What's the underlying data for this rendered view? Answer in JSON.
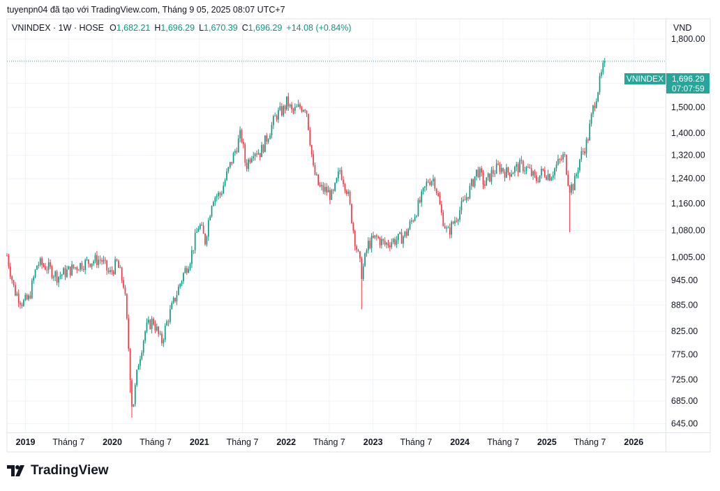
{
  "header": {
    "text": "tuyenpn04 đã tạo với TradingView.com, Tháng 9 05, 2025 08:07 UTC+7"
  },
  "legend": {
    "symbol": "VNINDEX · 1W · HOSE",
    "o_label": "O",
    "o_value": "1,682.21",
    "h_label": "H",
    "h_value": "1,696.29",
    "l_label": "L",
    "l_value": "1,670.39",
    "c_label": "C",
    "c_value": "1,696.29",
    "change": "+14.08 (+0.84%)"
  },
  "price_scale": {
    "currency": "VND"
  },
  "last_price": {
    "symbol_label": "VNINDEX",
    "price": "1,696.29",
    "countdown": "07:07:59"
  },
  "footer": {
    "brand": "TradingView"
  },
  "colors": {
    "up": "#089981",
    "down": "#f23645",
    "grid": "#f0f3fa",
    "badge": "#26a69a"
  },
  "chart_data": {
    "type": "candlestick",
    "scale": "log",
    "ylim": [
      630,
      1900
    ],
    "y_ticks": [
      645,
      685,
      725,
      775,
      825,
      885,
      945,
      1005,
      1080,
      1160,
      1240,
      1320,
      1400,
      1500,
      1600,
      1800
    ],
    "y_tick_labels": [
      "645.00",
      "685.00",
      "725.00",
      "775.00",
      "825.00",
      "885.00",
      "945.00",
      "1,005.00",
      "1,080.00",
      "1,160.00",
      "1,240.00",
      "1,320.00",
      "1,400.00",
      "1,500.00",
      "1,600.00",
      "1,800.00"
    ],
    "x_range": [
      "2018-10-15",
      "2026-05-15"
    ],
    "x_ticks": [
      {
        "label": "2019",
        "date": "2019-01-01"
      },
      {
        "label": "Tháng 7",
        "date": "2019-07-01"
      },
      {
        "label": "2020",
        "date": "2020-01-01"
      },
      {
        "label": "Tháng 7",
        "date": "2020-07-01"
      },
      {
        "label": "2021",
        "date": "2021-01-01"
      },
      {
        "label": "Tháng 7",
        "date": "2021-07-01"
      },
      {
        "label": "2022",
        "date": "2022-01-01"
      },
      {
        "label": "Tháng 7",
        "date": "2022-07-01"
      },
      {
        "label": "2023",
        "date": "2023-01-01"
      },
      {
        "label": "Tháng 7",
        "date": "2023-07-01"
      },
      {
        "label": "2024",
        "date": "2024-01-01"
      },
      {
        "label": "Tháng 7",
        "date": "2024-07-01"
      },
      {
        "label": "2025",
        "date": "2025-01-01"
      },
      {
        "label": "Tháng 7",
        "date": "2025-07-01"
      },
      {
        "label": "2026",
        "date": "2026-01-01"
      }
    ],
    "last_price_value": 1696.29,
    "last_date": "2025-09-01",
    "anchors": [
      [
        "2018-10-15",
        1010
      ],
      [
        "2018-11-15",
        920
      ],
      [
        "2018-12-20",
        890
      ],
      [
        "2019-01-15",
        900
      ],
      [
        "2019-02-20",
        990
      ],
      [
        "2019-04-01",
        980
      ],
      [
        "2019-05-15",
        955
      ],
      [
        "2019-07-01",
        970
      ],
      [
        "2019-08-15",
        985
      ],
      [
        "2019-10-01",
        995
      ],
      [
        "2019-11-15",
        1000
      ],
      [
        "2019-12-20",
        960
      ],
      [
        "2020-01-20",
        990
      ],
      [
        "2020-02-20",
        930
      ],
      [
        "2020-03-25",
        665
      ],
      [
        "2020-04-20",
        760
      ],
      [
        "2020-05-20",
        830
      ],
      [
        "2020-06-20",
        850
      ],
      [
        "2020-07-25",
        800
      ],
      [
        "2020-08-20",
        850
      ],
      [
        "2020-09-20",
        900
      ],
      [
        "2020-10-25",
        960
      ],
      [
        "2020-11-25",
        1005
      ],
      [
        "2020-12-31",
        1100
      ],
      [
        "2021-01-25",
        1050
      ],
      [
        "2021-02-25",
        1180
      ],
      [
        "2021-03-31",
        1190
      ],
      [
        "2021-04-25",
        1250
      ],
      [
        "2021-05-25",
        1320
      ],
      [
        "2021-06-25",
        1400
      ],
      [
        "2021-07-15",
        1280
      ],
      [
        "2021-08-15",
        1340
      ],
      [
        "2021-09-15",
        1330
      ],
      [
        "2021-10-15",
        1390
      ],
      [
        "2021-11-20",
        1470
      ],
      [
        "2021-12-20",
        1490
      ],
      [
        "2022-01-05",
        1525
      ],
      [
        "2022-01-25",
        1480
      ],
      [
        "2022-02-25",
        1500
      ],
      [
        "2022-03-25",
        1505
      ],
      [
        "2022-04-25",
        1270
      ],
      [
        "2022-05-20",
        1210
      ],
      [
        "2022-06-20",
        1200
      ],
      [
        "2022-07-15",
        1180
      ],
      [
        "2022-08-15",
        1270
      ],
      [
        "2022-09-15",
        1200
      ],
      [
        "2022-10-15",
        1060
      ],
      [
        "2022-11-15",
        960
      ],
      [
        "2022-12-10",
        1040
      ],
      [
        "2023-01-15",
        1060
      ],
      [
        "2023-02-20",
        1040
      ],
      [
        "2023-03-20",
        1050
      ],
      [
        "2023-04-20",
        1055
      ],
      [
        "2023-05-20",
        1070
      ],
      [
        "2023-06-20",
        1120
      ],
      [
        "2023-07-20",
        1170
      ],
      [
        "2023-08-20",
        1235
      ],
      [
        "2023-09-15",
        1240
      ],
      [
        "2023-10-15",
        1130
      ],
      [
        "2023-11-10",
        1070
      ],
      [
        "2023-12-10",
        1110
      ],
      [
        "2024-01-15",
        1160
      ],
      [
        "2024-02-15",
        1210
      ],
      [
        "2024-03-15",
        1270
      ],
      [
        "2024-04-15",
        1220
      ],
      [
        "2024-05-15",
        1260
      ],
      [
        "2024-06-15",
        1280
      ],
      [
        "2024-07-15",
        1260
      ],
      [
        "2024-08-15",
        1270
      ],
      [
        "2024-09-15",
        1285
      ],
      [
        "2024-10-15",
        1270
      ],
      [
        "2024-11-15",
        1235
      ],
      [
        "2024-12-15",
        1265
      ],
      [
        "2025-01-15",
        1250
      ],
      [
        "2025-02-15",
        1290
      ],
      [
        "2025-03-15",
        1320
      ],
      [
        "2025-04-05",
        1210
      ],
      [
        "2025-04-25",
        1220
      ],
      [
        "2025-05-20",
        1310
      ],
      [
        "2025-06-20",
        1370
      ],
      [
        "2025-07-15",
        1500
      ],
      [
        "2025-08-15",
        1620
      ],
      [
        "2025-09-01",
        1696.29
      ]
    ],
    "wicks": [
      [
        "2020-03-25",
        655
      ],
      [
        "2022-11-15",
        875
      ],
      [
        "2025-04-05",
        1075
      ],
      [
        "2020-03-15",
        700
      ]
    ]
  }
}
